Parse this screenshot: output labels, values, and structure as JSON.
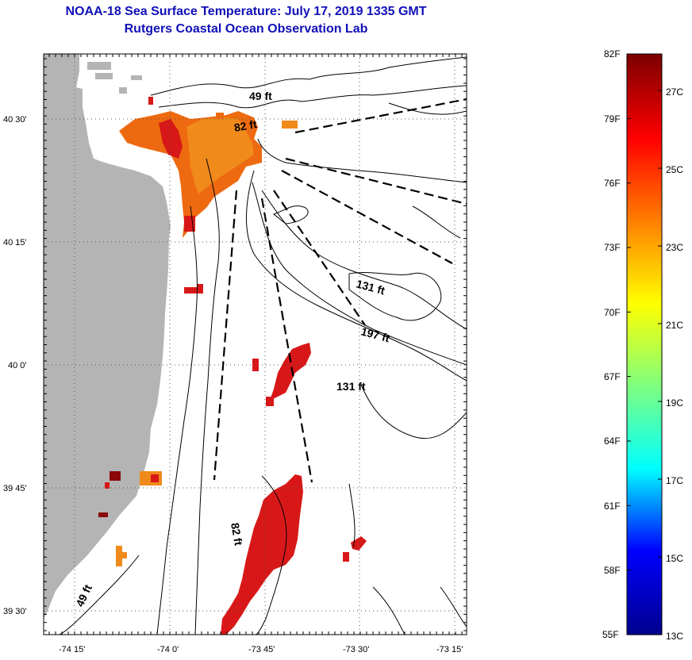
{
  "header": {
    "title": "NOAA-18 Sea Surface Temperature:  July 17, 2019 1335 GMT",
    "subtitle": "Rutgers Coastal Ocean Observation Lab"
  },
  "map": {
    "lon_labels": [
      "-74 15'",
      "-74 0'",
      "-73 45'",
      "-73 30'",
      "-73 15'"
    ],
    "lat_labels": [
      "40 30'",
      "40 15'",
      "40 0'",
      "39 45'",
      "39 30'"
    ],
    "contour_labels": [
      "49 ft",
      "82 ft",
      "131 ft",
      "197 ft",
      "131 ft",
      "82 ft",
      "49 ft"
    ],
    "colors": {
      "land": "#b4b4b4",
      "sst_warm": "#ee6a10",
      "sst_hot": "#d81818",
      "sst_orange": "#f08a1a",
      "sst_dark": "#8a0a0a"
    }
  },
  "colorbar": {
    "fahrenheit_labels": [
      "82F",
      "79F",
      "76F",
      "73F",
      "70F",
      "67F",
      "64F",
      "61F",
      "58F",
      "55F"
    ],
    "celsius_labels": [
      "27C",
      "25C",
      "23C",
      "21C",
      "19C",
      "17C",
      "15C",
      "13C"
    ],
    "range_f": [
      55,
      82
    ],
    "colormap": [
      "#00008f",
      "#0000ff",
      "#00ffff",
      "#7fff7f",
      "#ffff00",
      "#ff7f00",
      "#ff0000",
      "#7f0000"
    ]
  }
}
